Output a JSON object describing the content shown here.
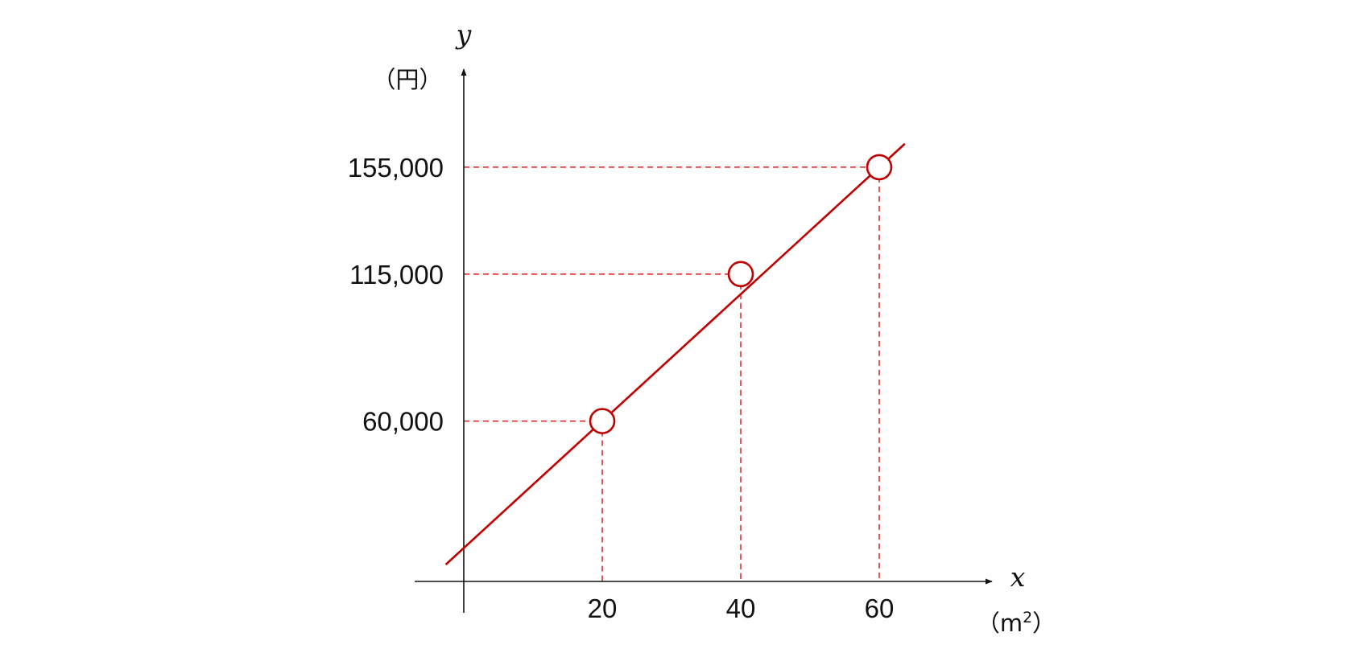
{
  "chart_data": {
    "type": "line",
    "title": "",
    "xlabel": "x",
    "ylabel": "y",
    "x_unit_prefix": "（m",
    "x_unit_sup": "2",
    "x_unit_suffix": "）",
    "y_unit": "（円）",
    "points": [
      {
        "x": 20,
        "y": 60000
      },
      {
        "x": 40,
        "y": 115000
      },
      {
        "x": 60,
        "y": 155000
      }
    ],
    "x_ticks": [
      {
        "value": 20,
        "label": "20"
      },
      {
        "value": 40,
        "label": "40"
      },
      {
        "value": 60,
        "label": "60"
      }
    ],
    "y_ticks": [
      {
        "value": 60000,
        "label": "60,000"
      },
      {
        "value": 115000,
        "label": "115,000"
      },
      {
        "value": 155000,
        "label": "155,000"
      }
    ],
    "line_color": "#c00000",
    "guide_color": "#d62020",
    "axis_color": "#111111",
    "grid": false
  }
}
